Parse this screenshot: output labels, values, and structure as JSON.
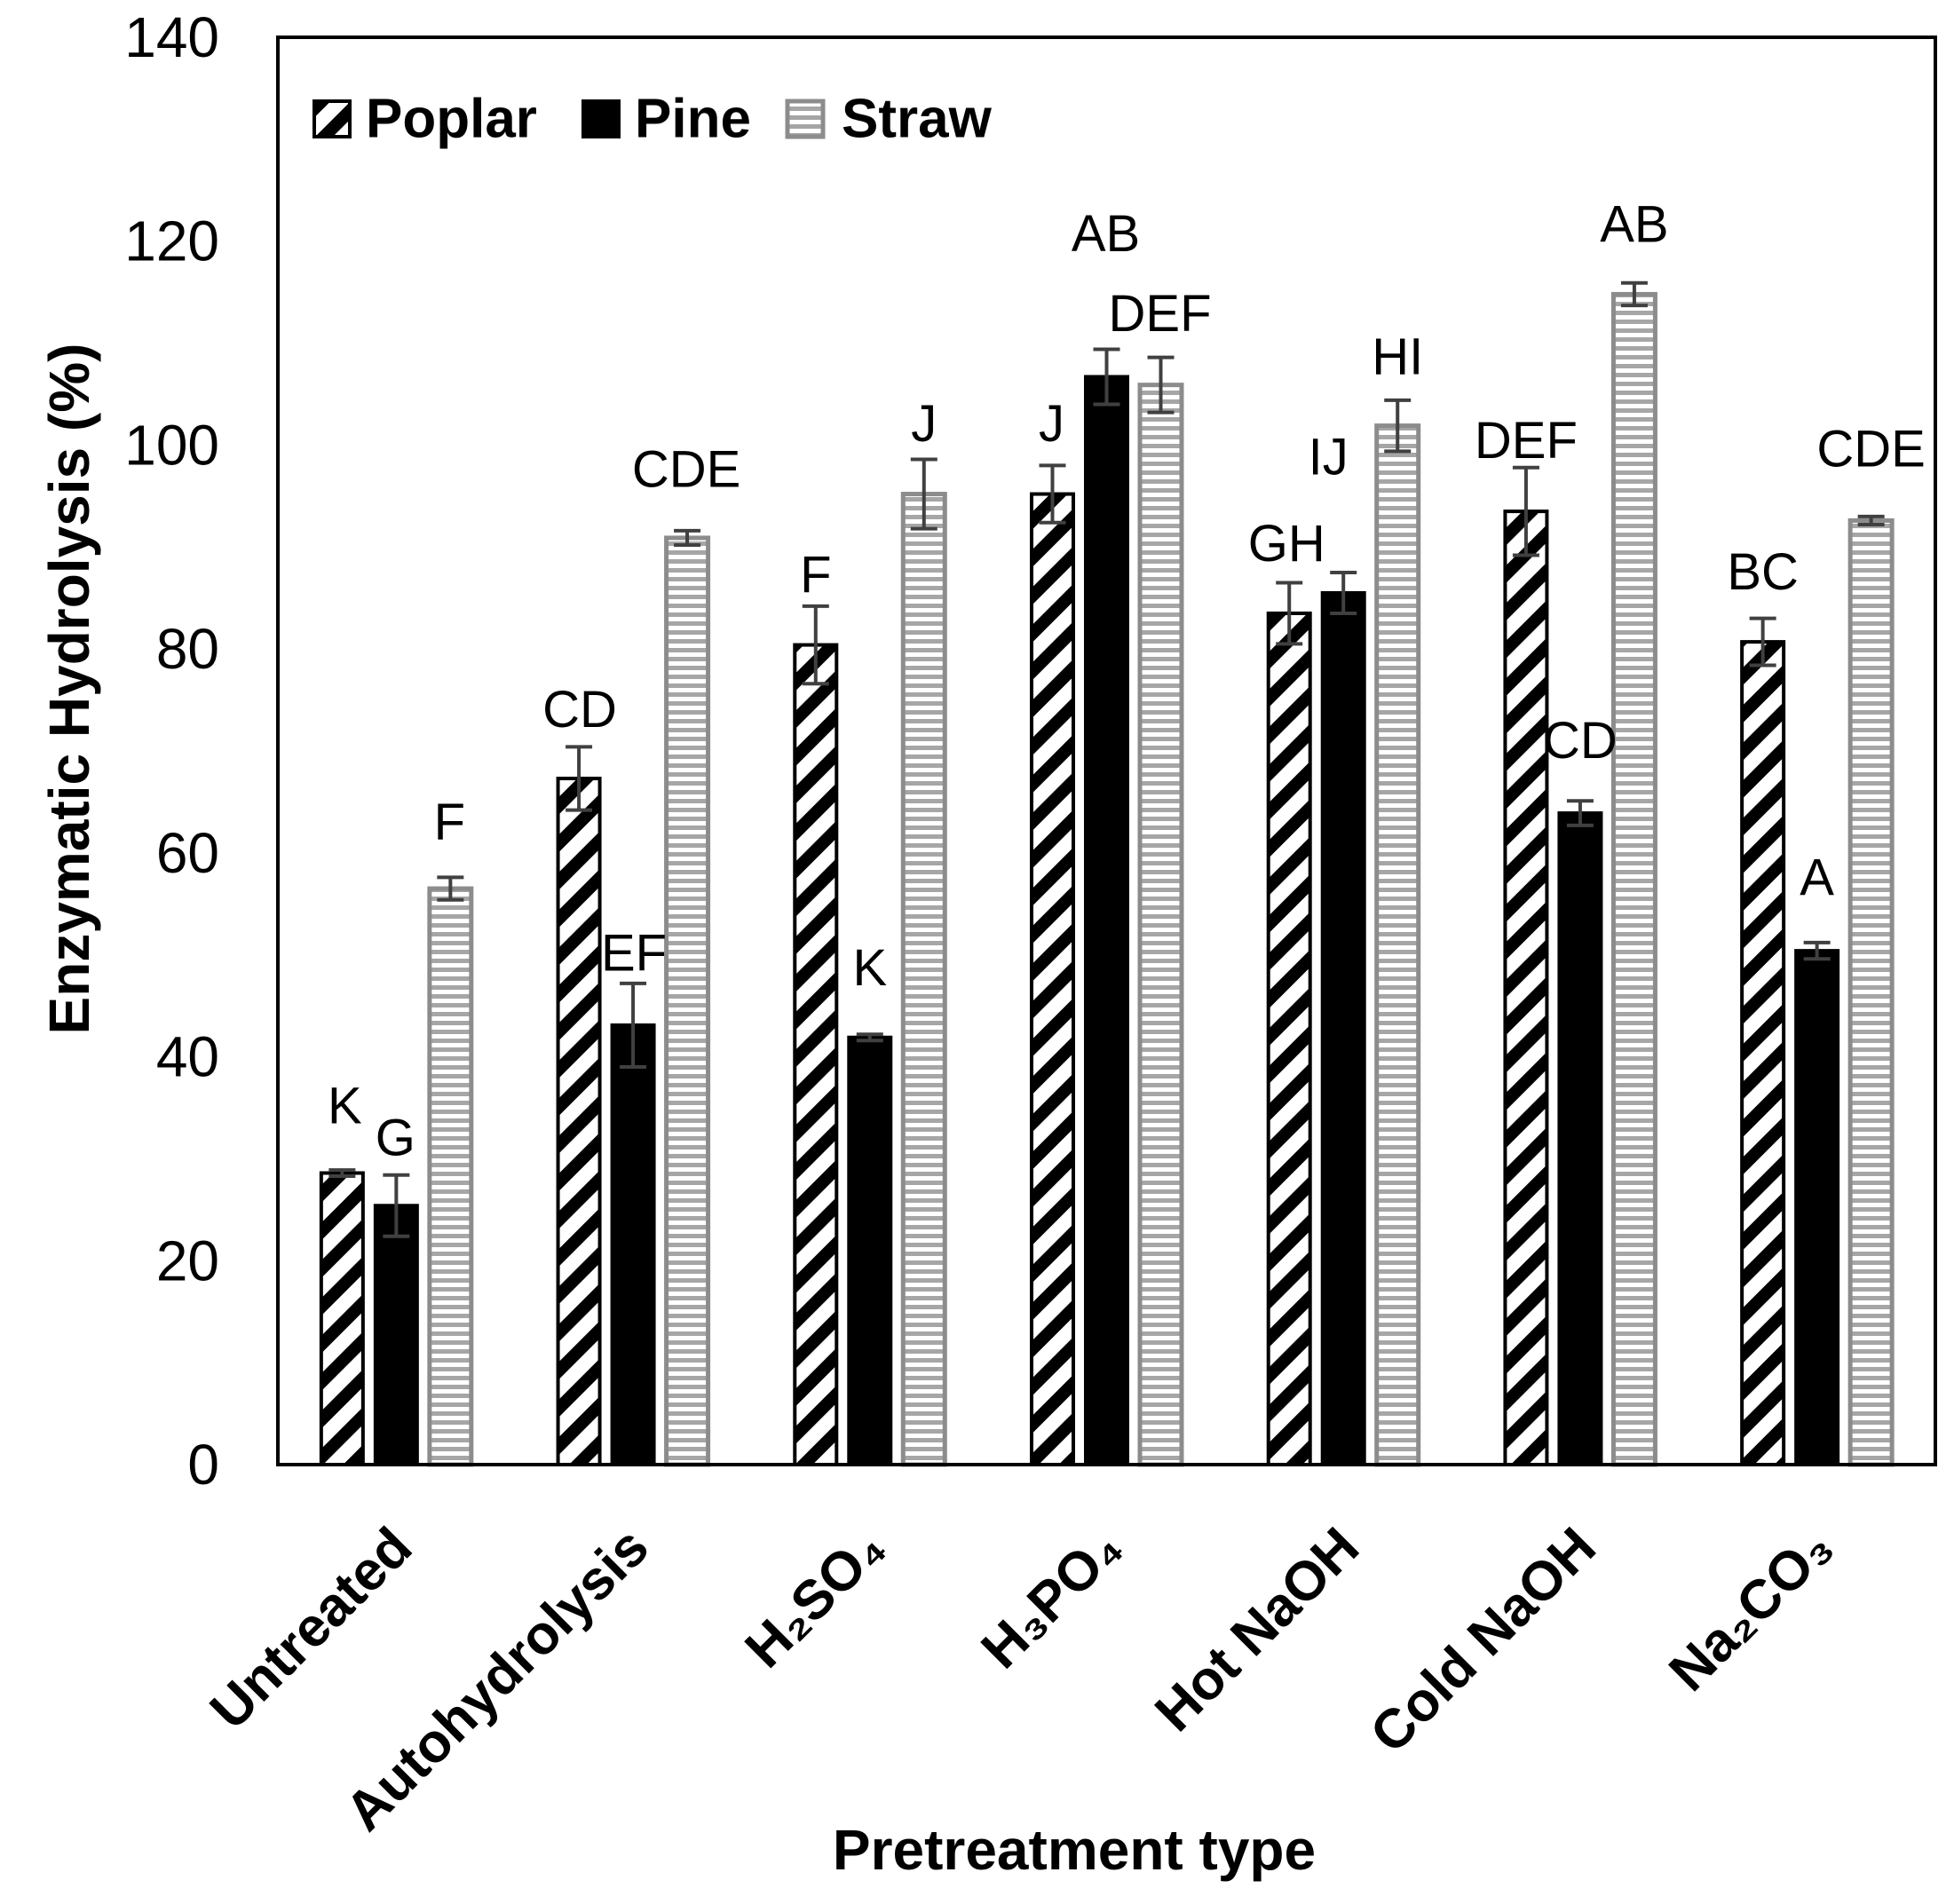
{
  "chart_data": {
    "type": "bar",
    "title": "",
    "xlabel": "Pretreatment type",
    "ylabel": "Enzymatic Hydrolysis (%)",
    "ylim": [
      0,
      140
    ],
    "yticks": [
      0,
      20,
      40,
      60,
      80,
      100,
      120,
      140
    ],
    "grid": false,
    "legend_position": "top-left",
    "error_bar_color": "#404040",
    "categories": [
      "Untreated",
      "Autohydrolysis",
      "H₂SO₄",
      "H₃PO₄",
      "Hot NaOH",
      "Cold NaOH",
      "Na₂CO₃"
    ],
    "series": [
      {
        "name": "Poplar",
        "color": "#000000",
        "values": [
          28.6,
          67.3,
          80.4,
          95.2,
          83.5,
          93.5,
          80.7
        ],
        "errors": [
          0.3,
          3.1,
          3.8,
          2.8,
          3.0,
          4.3,
          2.3
        ],
        "letters": [
          "K",
          "CD",
          "F",
          "J",
          "GH",
          "DEF",
          "BC"
        ]
      },
      {
        "name": "Pine",
        "color": "#000000",
        "values": [
          25.4,
          43.1,
          41.9,
          106.7,
          85.5,
          63.9,
          50.4
        ],
        "errors": [
          3.0,
          4.1,
          0.3,
          2.7,
          2.0,
          1.2,
          0.8
        ],
        "letters": [
          "G",
          "EF",
          "K",
          "AB",
          "IJ",
          "CD",
          "A"
        ]
      },
      {
        "name": "Straw",
        "color": "#a6a6a6",
        "values": [
          56.5,
          90.9,
          95.2,
          105.9,
          101.9,
          114.8,
          92.6
        ],
        "errors": [
          1.1,
          0.7,
          3.4,
          2.7,
          2.5,
          1.1,
          0.4
        ],
        "letters": [
          "F",
          "CDE",
          "J",
          "DEF",
          "HI",
          "AB",
          "CDE"
        ]
      }
    ]
  }
}
